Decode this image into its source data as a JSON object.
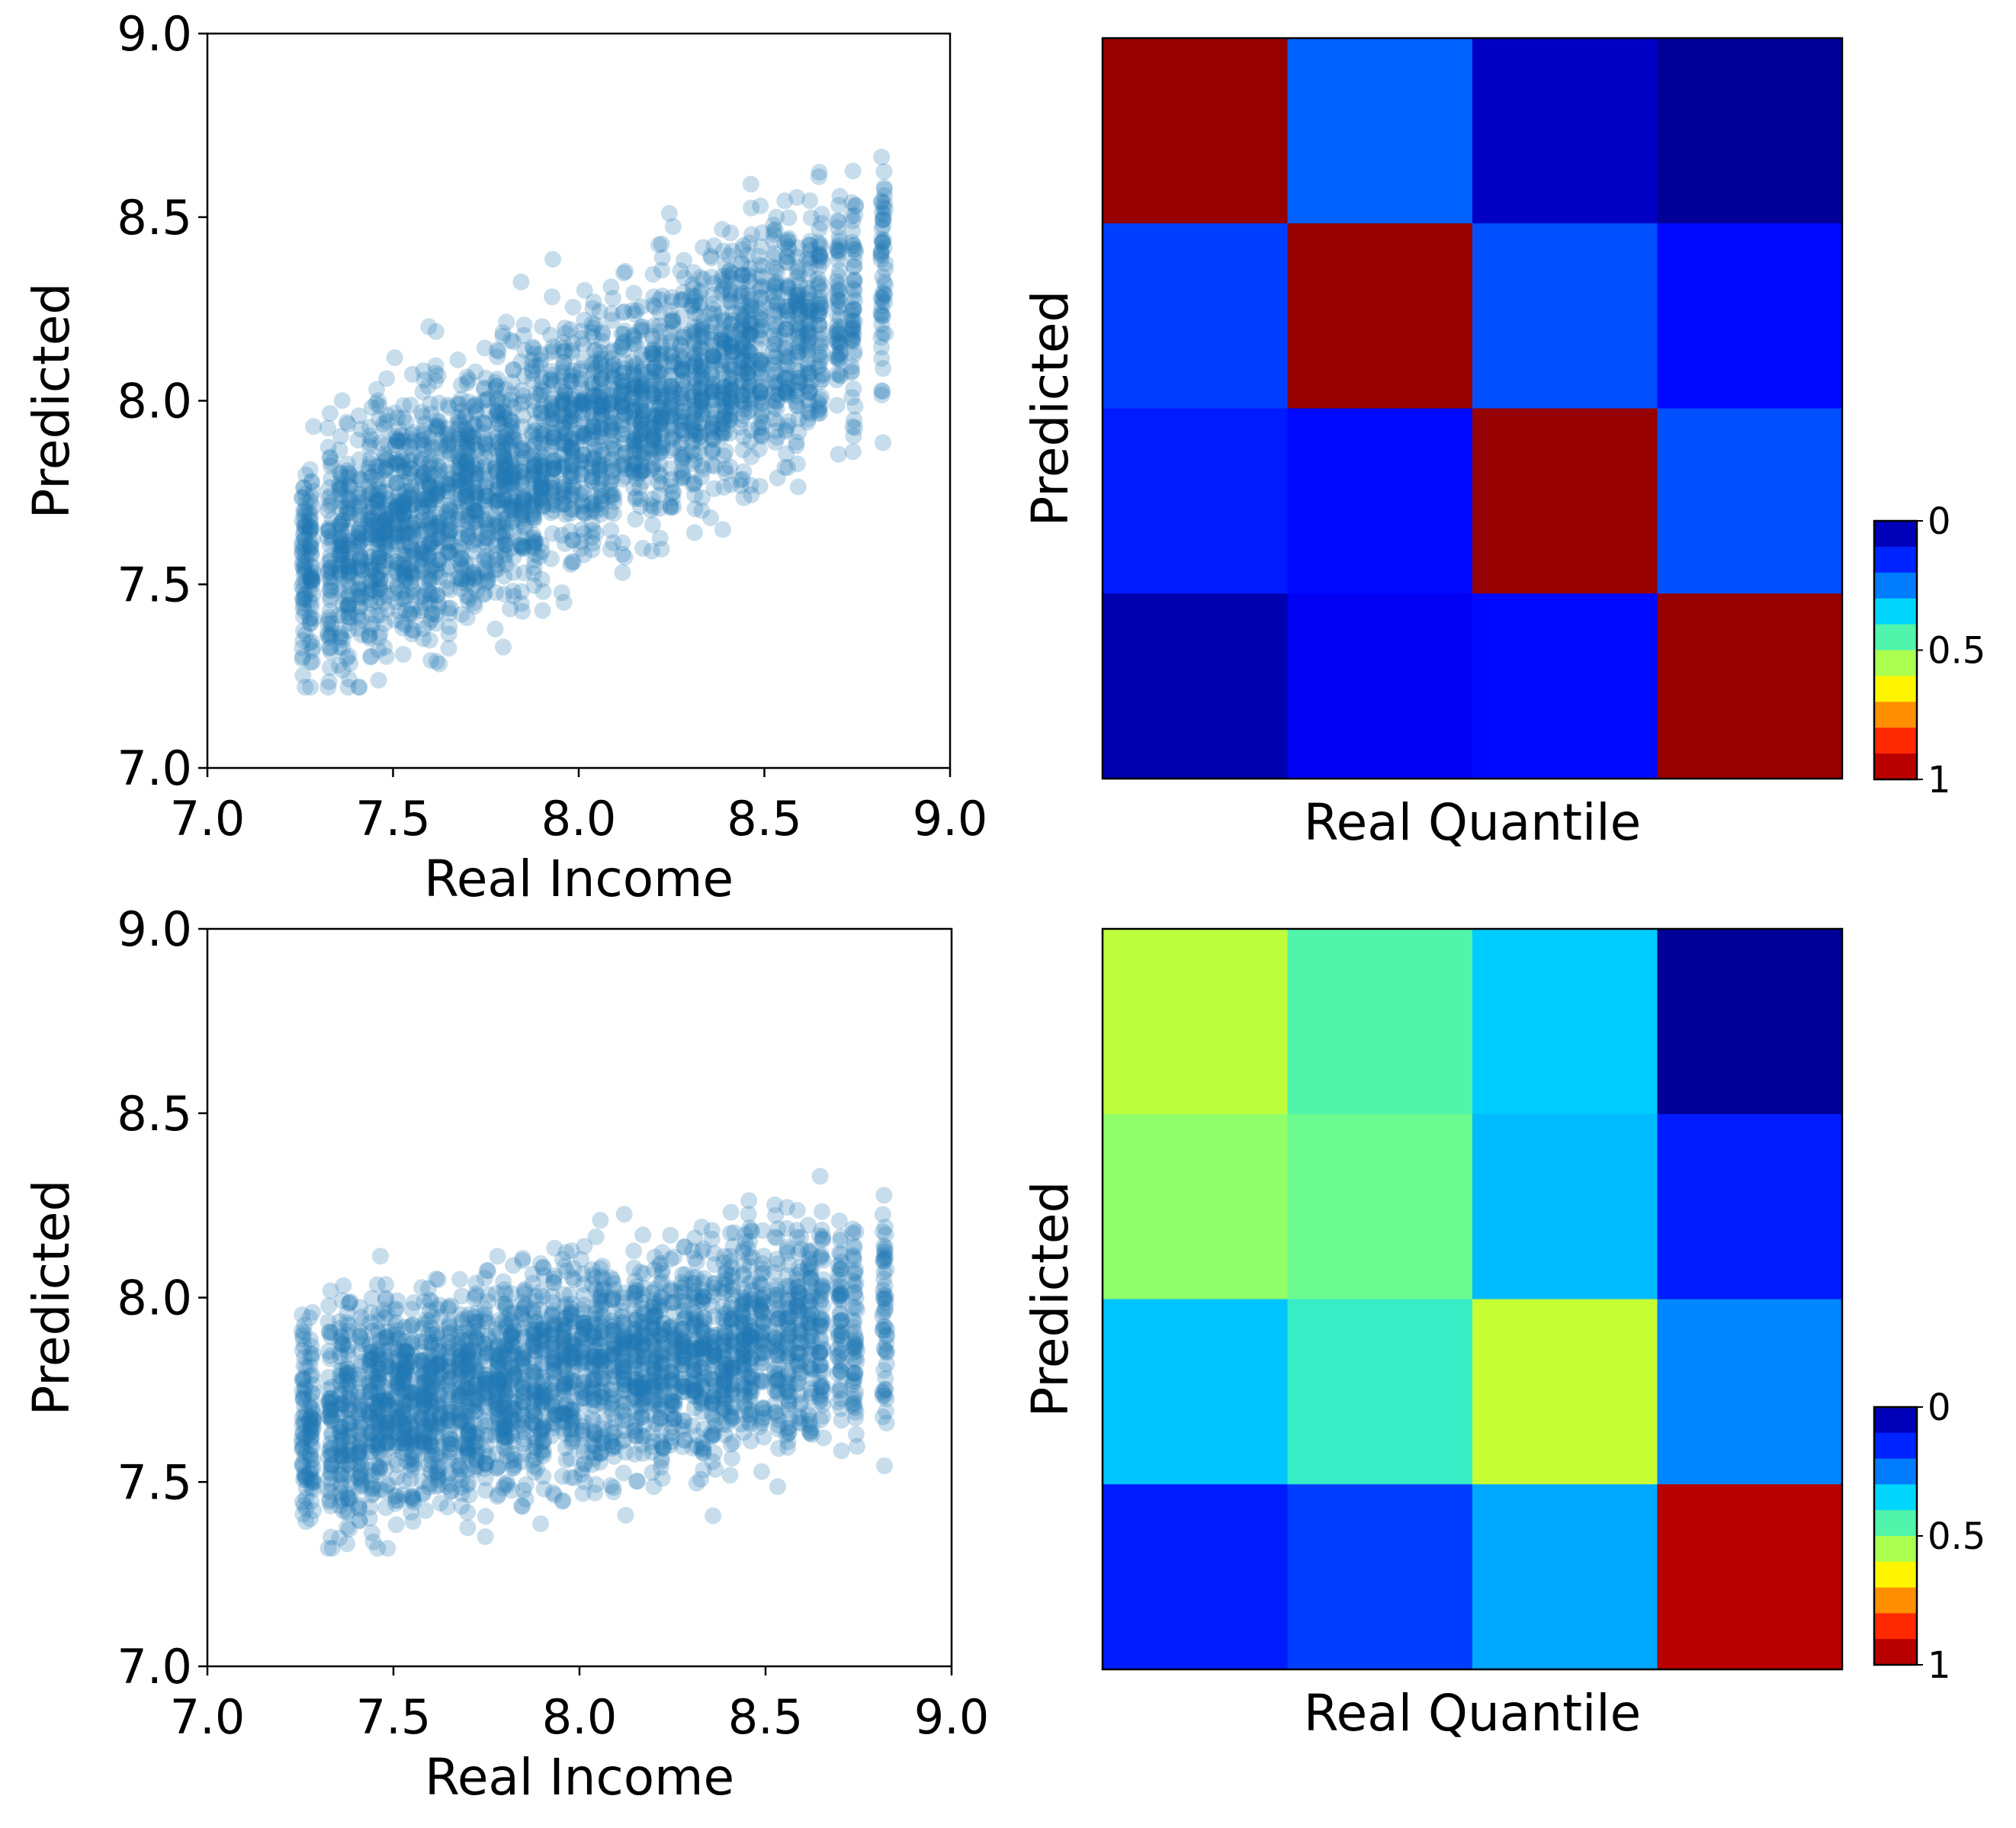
{
  "chart_data": [
    {
      "type": "scatter",
      "panel": "top-left",
      "xlabel": "Real Income",
      "ylabel": "Predicted",
      "xlim": [
        7.0,
        9.0
      ],
      "ylim": [
        7.0,
        9.0
      ],
      "xticks": [
        "7.0",
        "7.5",
        "8.0",
        "8.5",
        "9.0"
      ],
      "yticks": [
        "7.0",
        "7.5",
        "8.0",
        "8.5",
        "9.0"
      ],
      "marker_color": "#1f77b4",
      "marker_alpha": 0.25,
      "trend": {
        "slope": 0.5,
        "intercept": 3.9,
        "spread": 0.17,
        "clip": [
          7.22,
          8.78
        ]
      },
      "x_groups": [
        7.26,
        7.28,
        7.33,
        7.36,
        7.38,
        7.41,
        7.44,
        7.46,
        7.48,
        7.51,
        7.53,
        7.55,
        7.58,
        7.6,
        7.62,
        7.65,
        7.68,
        7.7,
        7.72,
        7.75,
        7.78,
        7.8,
        7.82,
        7.85,
        7.88,
        7.9,
        7.93,
        7.96,
        7.98,
        8.01,
        8.04,
        8.06,
        8.09,
        8.12,
        8.15,
        8.17,
        8.2,
        8.22,
        8.25,
        8.28,
        8.31,
        8.33,
        8.36,
        8.39,
        8.41,
        8.44,
        8.46,
        8.49,
        8.53,
        8.56,
        8.59,
        8.62,
        8.65,
        8.7,
        8.74,
        8.82
      ],
      "points_per_group": 56
    },
    {
      "type": "heatmap",
      "panel": "top-right",
      "xlabel": "Real Quantile",
      "ylabel": "Predicted",
      "rows": 4,
      "cols": 4,
      "values": [
        [
          0.98,
          0.22,
          0.06,
          0.02
        ],
        [
          0.18,
          0.98,
          0.2,
          0.12
        ],
        [
          0.14,
          0.12,
          0.98,
          0.2
        ],
        [
          0.04,
          0.1,
          0.12,
          0.98
        ]
      ],
      "colorbar": {
        "ticks": [
          "0",
          "0.5",
          "1"
        ],
        "tick_values": [
          0,
          0.5,
          1
        ]
      }
    },
    {
      "type": "scatter",
      "panel": "bottom-left",
      "xlabel": "Real Income",
      "ylabel": "Predicted",
      "xlim": [
        7.0,
        9.0
      ],
      "ylim": [
        7.0,
        9.0
      ],
      "xticks": [
        "7.0",
        "7.5",
        "8.0",
        "8.5",
        "9.0"
      ],
      "yticks": [
        "7.0",
        "7.5",
        "8.0",
        "8.5",
        "9.0"
      ],
      "marker_color": "#1f77b4",
      "marker_alpha": 0.25,
      "trend": {
        "slope": 0.18,
        "intercept": 6.36,
        "spread": 0.15,
        "clip": [
          7.32,
          8.5
        ]
      },
      "x_groups": [
        7.26,
        7.28,
        7.33,
        7.36,
        7.38,
        7.41,
        7.44,
        7.46,
        7.48,
        7.51,
        7.53,
        7.55,
        7.58,
        7.6,
        7.62,
        7.65,
        7.68,
        7.7,
        7.72,
        7.75,
        7.78,
        7.8,
        7.82,
        7.85,
        7.88,
        7.9,
        7.93,
        7.96,
        7.98,
        8.01,
        8.04,
        8.06,
        8.09,
        8.12,
        8.15,
        8.17,
        8.2,
        8.22,
        8.25,
        8.28,
        8.31,
        8.33,
        8.36,
        8.39,
        8.41,
        8.44,
        8.46,
        8.49,
        8.53,
        8.56,
        8.59,
        8.62,
        8.65,
        8.7,
        8.74,
        8.82
      ],
      "points_per_group": 56
    },
    {
      "type": "heatmap",
      "panel": "bottom-right",
      "xlabel": "Real Quantile",
      "ylabel": "Predicted",
      "rows": 4,
      "cols": 4,
      "values": [
        [
          0.57,
          0.45,
          0.34,
          0.02
        ],
        [
          0.52,
          0.48,
          0.32,
          0.14
        ],
        [
          0.33,
          0.42,
          0.58,
          0.26
        ],
        [
          0.14,
          0.18,
          0.3,
          0.95
        ]
      ],
      "colorbar": {
        "ticks": [
          "0",
          "0.5",
          "1"
        ],
        "tick_values": [
          0,
          0.5,
          1
        ]
      }
    }
  ]
}
